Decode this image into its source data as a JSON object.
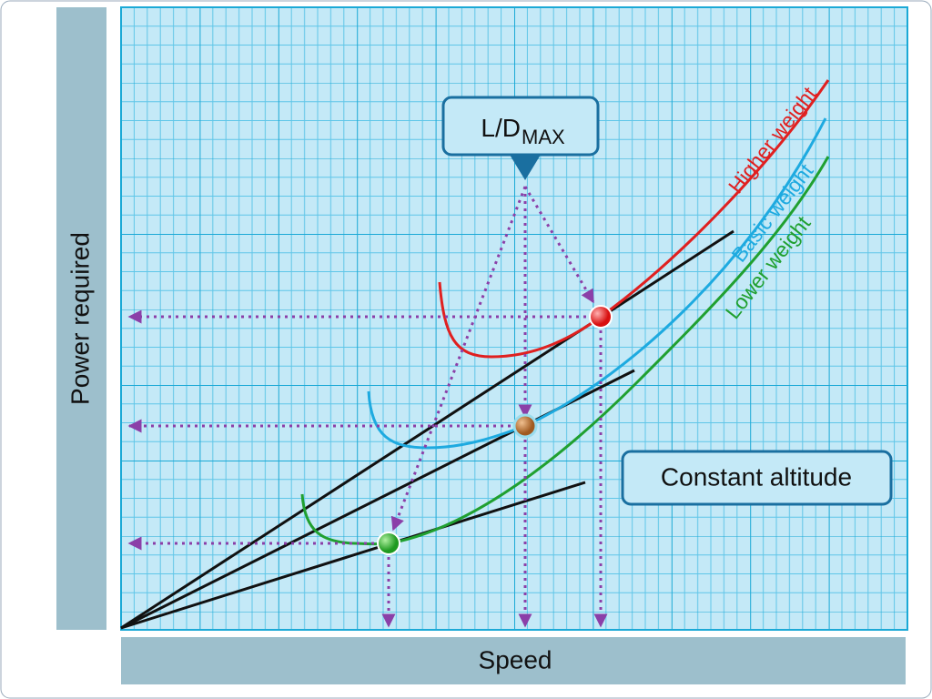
{
  "axis_labels": {
    "y": "Power required",
    "x": "Speed"
  },
  "callout": {
    "label": "L/D",
    "subscript": "MAX"
  },
  "note": "Constant altitude",
  "curves": [
    {
      "label": "Higher weight"
    },
    {
      "label": "Basic weight"
    },
    {
      "label": "Lower weight"
    }
  ]
}
